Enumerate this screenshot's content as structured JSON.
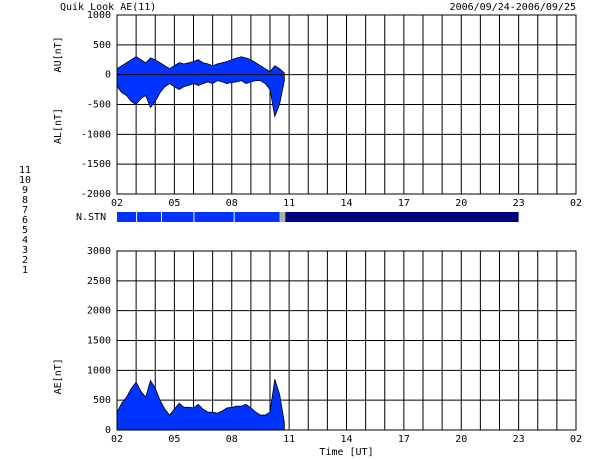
{
  "chart_data": [
    {
      "type": "area",
      "title": "Quik Look AE(11)",
      "date_range": "2006/09/24-2006/09/25",
      "y_labels": [
        "AU[nT]",
        "AL[nT]"
      ],
      "x": [
        2,
        2.25,
        2.5,
        2.75,
        3,
        3.25,
        3.5,
        3.75,
        4,
        4.25,
        4.5,
        4.75,
        5,
        5.25,
        5.5,
        5.75,
        6,
        6.25,
        6.5,
        6.75,
        7,
        7.25,
        7.5,
        7.75,
        8,
        8.25,
        8.5,
        8.75,
        9,
        9.25,
        9.5,
        9.75,
        10,
        10.25,
        10.5,
        10.75
      ],
      "series": [
        {
          "name": "AU",
          "color": "#0033ff",
          "values": [
            100,
            150,
            200,
            250,
            300,
            250,
            200,
            280,
            250,
            200,
            150,
            100,
            150,
            200,
            180,
            200,
            220,
            250,
            200,
            180,
            150,
            180,
            200,
            220,
            250,
            280,
            300,
            280,
            250,
            200,
            150,
            100,
            50,
            150,
            100,
            30
          ]
        },
        {
          "name": "AL",
          "color": "#0033ff",
          "values": [
            -200,
            -300,
            -350,
            -450,
            -500,
            -400,
            -350,
            -550,
            -450,
            -300,
            -200,
            -150,
            -200,
            -250,
            -200,
            -180,
            -150,
            -180,
            -150,
            -120,
            -150,
            -100,
            -120,
            -150,
            -130,
            -120,
            -100,
            -150,
            -120,
            -100,
            -100,
            -150,
            -250,
            -700,
            -500,
            -100
          ]
        }
      ],
      "xlim": [
        2,
        26
      ],
      "xticks": [
        {
          "value": 2,
          "label": "02"
        },
        {
          "value": 5,
          "label": "05"
        },
        {
          "value": 8,
          "label": "08"
        },
        11,
        14,
        17,
        20,
        23,
        {
          "value": 26,
          "label": "02"
        }
      ],
      "xgrid_step": 1,
      "ylim": [
        -2000,
        1000
      ],
      "yticks": [
        -2000,
        -1500,
        -1000,
        -500,
        0,
        500,
        1000
      ],
      "grid": true
    },
    {
      "type": "band",
      "name": "N.STN",
      "xlim": [
        2,
        26
      ],
      "legend": [
        {
          "name": "11",
          "color": "#00e0ff"
        },
        {
          "name": "10",
          "color": "#ff00ff"
        },
        {
          "name": "9",
          "color": "#0033ff"
        },
        {
          "name": "8",
          "color": "#ffff80"
        },
        {
          "name": "7",
          "color": "#a0e040"
        },
        {
          "name": "6",
          "color": "#ff0000"
        },
        {
          "name": "5",
          "color": "#b0b0a0"
        },
        {
          "name": "4",
          "color": "#d8d8d8"
        },
        {
          "name": "3",
          "color": "#00b0b0"
        },
        {
          "name": "2",
          "color": "#b000b0"
        },
        {
          "name": "1",
          "color": "#000080"
        }
      ],
      "segments": [
        {
          "start": 2,
          "end": 3,
          "count": 9
        },
        {
          "start": 3.05,
          "end": 4.3,
          "count": 9
        },
        {
          "start": 4.35,
          "end": 6,
          "count": 9
        },
        {
          "start": 6.05,
          "end": 8.1,
          "count": 9
        },
        {
          "start": 8.15,
          "end": 10.5,
          "count": 9
        },
        {
          "start": 10.5,
          "end": 10.8,
          "count": 5
        },
        {
          "start": 10.8,
          "end": 23,
          "count": 1
        }
      ]
    },
    {
      "type": "area",
      "y_labels": [
        "AE[nT]"
      ],
      "x_label": "Time [UT]",
      "x": [
        2,
        2.25,
        2.5,
        2.75,
        3,
        3.25,
        3.5,
        3.75,
        4,
        4.25,
        4.5,
        4.75,
        5,
        5.25,
        5.5,
        5.75,
        6,
        6.25,
        6.5,
        6.75,
        7,
        7.25,
        7.5,
        7.75,
        8,
        8.25,
        8.5,
        8.75,
        9,
        9.25,
        9.5,
        9.75,
        10,
        10.25,
        10.5,
        10.75
      ],
      "series": [
        {
          "name": "AE",
          "color": "#0033ff",
          "values": [
            300,
            450,
            550,
            700,
            800,
            650,
            550,
            830,
            700,
            500,
            350,
            250,
            350,
            450,
            380,
            380,
            370,
            430,
            350,
            300,
            300,
            280,
            320,
            370,
            380,
            400,
            400,
            430,
            370,
            300,
            250,
            250,
            300,
            850,
            600,
            130
          ]
        }
      ],
      "xlim": [
        2,
        26
      ],
      "xticks": [
        {
          "value": 2,
          "label": "02"
        },
        {
          "value": 5,
          "label": "05"
        },
        {
          "value": 8,
          "label": "08"
        },
        11,
        14,
        17,
        20,
        23,
        {
          "value": 26,
          "label": "02"
        }
      ],
      "xgrid_step": 1,
      "ylim": [
        0,
        3000
      ],
      "yticks": [
        0,
        500,
        1000,
        1500,
        2000,
        2500,
        3000
      ],
      "grid": true
    }
  ]
}
